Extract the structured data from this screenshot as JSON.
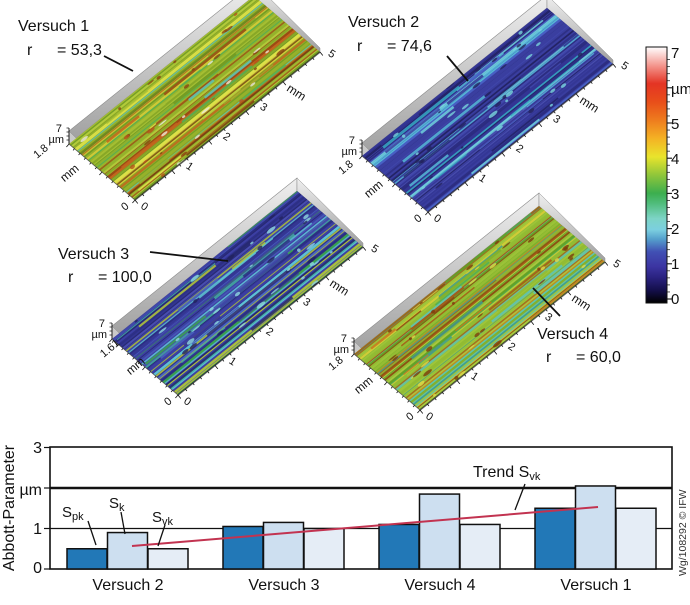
{
  "watermark": "Wg/108292 © IFW",
  "colorbar": {
    "unit": "µm",
    "min": 0,
    "max": 7,
    "tick_labels": [
      "7",
      "µm",
      "5",
      "4",
      "3",
      "2",
      "1",
      "0"
    ],
    "gradient_stops": [
      [
        0,
        "#000000"
      ],
      [
        0.05,
        "#140f4b"
      ],
      [
        0.1,
        "#2a2280"
      ],
      [
        0.143,
        "#3c35a2"
      ],
      [
        0.2,
        "#4150b4"
      ],
      [
        0.25,
        "#55a0cc"
      ],
      [
        0.286,
        "#7bcfe0"
      ],
      [
        0.33,
        "#7dd4c6"
      ],
      [
        0.39,
        "#4fbc7a"
      ],
      [
        0.429,
        "#3cae4e"
      ],
      [
        0.5,
        "#90c63a"
      ],
      [
        0.571,
        "#e9e42c"
      ],
      [
        0.643,
        "#f4b224"
      ],
      [
        0.714,
        "#ee7c1e"
      ],
      [
        0.786,
        "#e84e1a"
      ],
      [
        0.857,
        "#e43424"
      ],
      [
        0.929,
        "#f49890"
      ],
      [
        1,
        "#ffffff"
      ]
    ]
  },
  "chart_data": [
    {
      "type": "surface",
      "title": "Versuch 1",
      "r_symbol": "r",
      "r_value": "= 53,3",
      "x_axis": {
        "ticks": [
          "0",
          "1",
          "2",
          "3"
        ],
        "end_tick": "5",
        "unit": "mm",
        "range_mm": [
          0,
          5
        ]
      },
      "y_axis": {
        "tick": "0",
        "extent_label": "1.8",
        "unit": "mm"
      },
      "z_axis": {
        "top_label": "7",
        "unit": "µm",
        "range_um": [
          0,
          7
        ]
      },
      "appearance": {
        "base_color": "#98b12e",
        "palette": [
          "#95b22c",
          "#a6c034",
          "#86a526",
          "#b8cf3e",
          "#6f9a24",
          "#c2661e",
          "#9c4a14",
          "#d8ce3a",
          "#55b052",
          "#7a3c10",
          "#e0e34a",
          "#5fc0b8"
        ],
        "speck_colors": [
          "#8a4210",
          "#b5521a",
          "#ece8da"
        ],
        "description": "green-yellow ground surface with red-brown streaks"
      }
    },
    {
      "type": "surface",
      "title": "Versuch 2",
      "r_symbol": "r",
      "r_value": "= 74,6",
      "x_axis": {
        "ticks": [
          "0",
          "1",
          "2",
          "3"
        ],
        "end_tick": "5",
        "unit": "mm",
        "range_mm": [
          0,
          5
        ]
      },
      "y_axis": {
        "tick": "0",
        "extent_label": "1.8",
        "unit": "mm"
      },
      "z_axis": {
        "top_label": "7",
        "unit": "µm",
        "range_um": [
          0,
          7
        ]
      },
      "appearance": {
        "base_color": "#3a3d9c",
        "palette": [
          "#3b3fa0",
          "#343694",
          "#4a50b0",
          "#2c2d80",
          "#4148ac",
          "#56b8d8",
          "#6fd0dc",
          "#232364",
          "#4962c6",
          "#35a8c0"
        ],
        "speck_colors": [
          "#23235e",
          "#79d4dc"
        ],
        "description": "dark blue smooth surface with cyan streaks"
      }
    },
    {
      "type": "surface",
      "title": "Versuch 3",
      "r_symbol": "r",
      "r_value": "= 100,0",
      "x_axis": {
        "ticks": [
          "0",
          "1",
          "2",
          "3"
        ],
        "end_tick": "5",
        "unit": "mm",
        "range_mm": [
          0,
          5
        ]
      },
      "y_axis": {
        "tick": "0",
        "extent_label": "1.61",
        "unit": "mm"
      },
      "z_axis": {
        "top_label": "7",
        "unit": "µm",
        "range_um": [
          0,
          7
        ]
      },
      "appearance": {
        "base_color": "#3b3ea0",
        "palette": [
          "#3d40a4",
          "#343692",
          "#4a50b2",
          "#2c2e82",
          "#5fc4d4",
          "#45b0a0",
          "#3aa24e",
          "#b4c832",
          "#26286e",
          "#4a66c0"
        ],
        "speck_colors": [
          "#23235e",
          "#8fd8e0"
        ],
        "description": "blue-violet surface with cyan and green-yellow streaks"
      }
    },
    {
      "type": "surface",
      "title": "Versuch 4",
      "r_symbol": "r",
      "r_value": "= 60,0",
      "x_axis": {
        "ticks": [
          "0",
          "1",
          "2",
          "3"
        ],
        "end_tick": "5",
        "unit": "mm",
        "range_mm": [
          0,
          5
        ]
      },
      "y_axis": {
        "tick": "0",
        "extent_label": "1.8",
        "unit": "mm"
      },
      "z_axis": {
        "top_label": "7",
        "unit": "µm",
        "range_um": [
          0,
          7
        ]
      },
      "appearance": {
        "base_color": "#90b836",
        "palette": [
          "#93bc34",
          "#9fc63a",
          "#7fae2c",
          "#b0cc42",
          "#62a228",
          "#5cc4bc",
          "#4ab05a",
          "#8a4410",
          "#a65816",
          "#d2cc38",
          "#c87820",
          "#3f9e8e"
        ],
        "speck_colors": [
          "#7c3c0c",
          "#e0d84a"
        ],
        "description": "green-yellow surface with cyan bands and dark brown streaks"
      }
    },
    {
      "type": "bar",
      "ylabel": "Abbott-Parameter",
      "y_unit": "µm",
      "ylim": [
        0,
        3
      ],
      "y_tick_labels": [
        "0",
        "1",
        "µm",
        "3"
      ],
      "gridlines": [
        1,
        2
      ],
      "categories": [
        "Versuch 2",
        "Versuch 3",
        "Versuch 4",
        "Versuch 1"
      ],
      "series": [
        {
          "name": "Spk",
          "label_main": "S",
          "label_sub": "pk",
          "color": "#2278b7",
          "values": [
            0.5,
            1.05,
            1.1,
            1.5
          ]
        },
        {
          "name": "Sk",
          "label_main": "S",
          "label_sub": "k",
          "color": "#cddff0",
          "values": [
            0.9,
            1.15,
            1.85,
            2.05
          ]
        },
        {
          "name": "Svk",
          "label_main": "S",
          "label_sub": "vk",
          "color": "#e5edf6",
          "values": [
            0.5,
            1.0,
            1.1,
            1.5
          ]
        }
      ],
      "trend": {
        "label_main": "Trend S",
        "label_sub": "vk",
        "color": "#c23350",
        "start_value": 0.55,
        "end_value": 1.55
      }
    }
  ]
}
